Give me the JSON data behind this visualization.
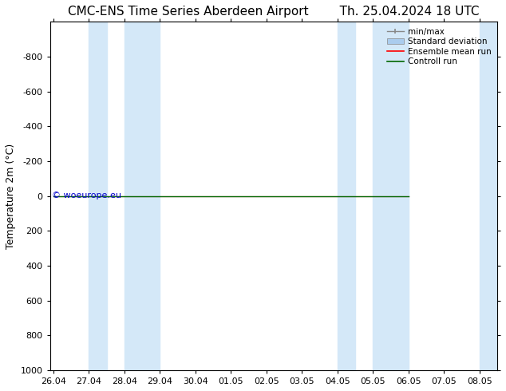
{
  "title_left": "CMC-ENS Time Series Aberdeen Airport",
  "title_right": "Th. 25.04.2024 18 UTC",
  "ylabel": "Temperature 2m (°C)",
  "watermark": "© woeurope.eu",
  "background_color": "#ffffff",
  "plot_bg_color": "#ffffff",
  "ylim_bottom": 1000,
  "ylim_top": -1000,
  "ytick_values": [
    -800,
    -600,
    -400,
    -200,
    0,
    200,
    400,
    600,
    800,
    1000
  ],
  "x_tick_labels": [
    "26.04",
    "27.04",
    "28.04",
    "29.04",
    "30.04",
    "01.05",
    "02.05",
    "03.05",
    "04.05",
    "05.05",
    "06.05",
    "07.05",
    "08.05"
  ],
  "x_tick_positions": [
    0,
    1,
    2,
    3,
    4,
    5,
    6,
    7,
    8,
    9,
    10,
    11,
    12
  ],
  "control_run_x_start": 0,
  "control_run_x_end": 10,
  "control_run_y": 0,
  "shade_bands": [
    [
      1.0,
      1.5
    ],
    [
      2.0,
      3.0
    ],
    [
      8.0,
      8.5
    ],
    [
      9.0,
      10.0
    ],
    [
      12.0,
      12.5
    ]
  ],
  "shade_color": "#d4e8f8",
  "legend_items": [
    "min/max",
    "Standard deviation",
    "Ensemble mean run",
    "Controll run"
  ],
  "legend_colors_line": [
    "#888888",
    "#aaccee",
    "#ff0000",
    "#006600"
  ],
  "minmax_color": "#888888",
  "std_color": "#aaccee",
  "ensemble_color": "#ff0000",
  "control_color": "#006600",
  "title_fontsize": 11,
  "label_fontsize": 9,
  "tick_fontsize": 8,
  "watermark_color": "#0000cc",
  "watermark_fontsize": 8
}
